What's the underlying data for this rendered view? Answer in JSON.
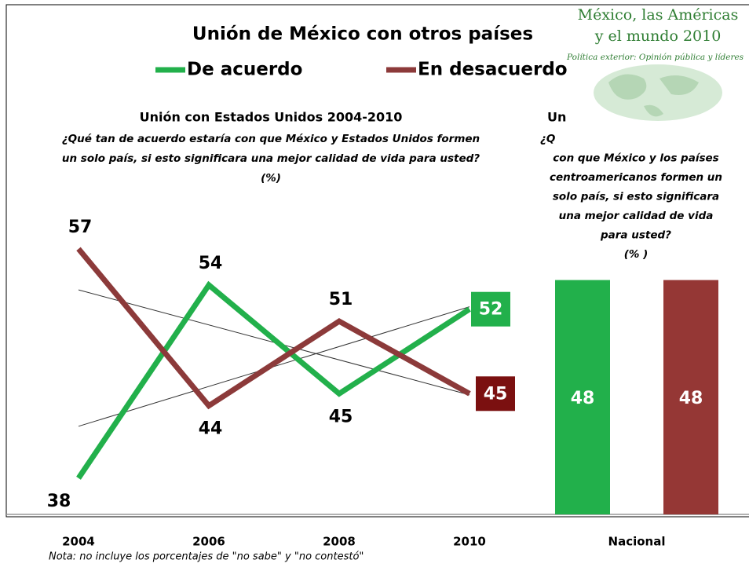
{
  "title": "Unión de México con otros países",
  "note": "Nota: no incluye los porcentajes de \"no sabe\" y \"no contestó\"",
  "logo": {
    "lines": [
      "México, las Américas",
      "y el mundo 2010"
    ],
    "tagline": "Política exterior: Opinión pública y líderes"
  },
  "chart_data": [
    {
      "type": "line",
      "title": "Unión con Estados Unidos 2004-2010",
      "subtitle": [
        "¿Qué tan de acuerdo estaría con que México y Estados Unidos formen",
        "un solo país, si esto significara una mejor calidad de vida para usted?",
        "(%)"
      ],
      "categories": [
        "2004",
        "2006",
        "2008",
        "2010"
      ],
      "series": [
        {
          "name": "De acuerdo",
          "color": "#22b04b",
          "values": [
            38,
            54,
            45,
            52
          ]
        },
        {
          "name": "En desacuerdo",
          "color": "#8c3a3a",
          "values": [
            57,
            44,
            51,
            45
          ]
        }
      ],
      "ylim": [
        35,
        62
      ],
      "trendline": true
    },
    {
      "type": "bar",
      "title": "Un",
      "subtitle": [
        "¿Q",
        "con que México y los países",
        "centroamericanos formen un",
        "solo país, si esto significara",
        "una mejor calidad de vida",
        "para usted?",
        "(% )"
      ],
      "categories": [
        "Nacional"
      ],
      "series": [
        {
          "name": "De acuerdo",
          "color": "#22b04b",
          "values": [
            48
          ]
        },
        {
          "name": "En desacuerdo",
          "color": "#953735",
          "values": [
            48
          ]
        }
      ],
      "ylim": [
        0,
        60
      ]
    }
  ]
}
